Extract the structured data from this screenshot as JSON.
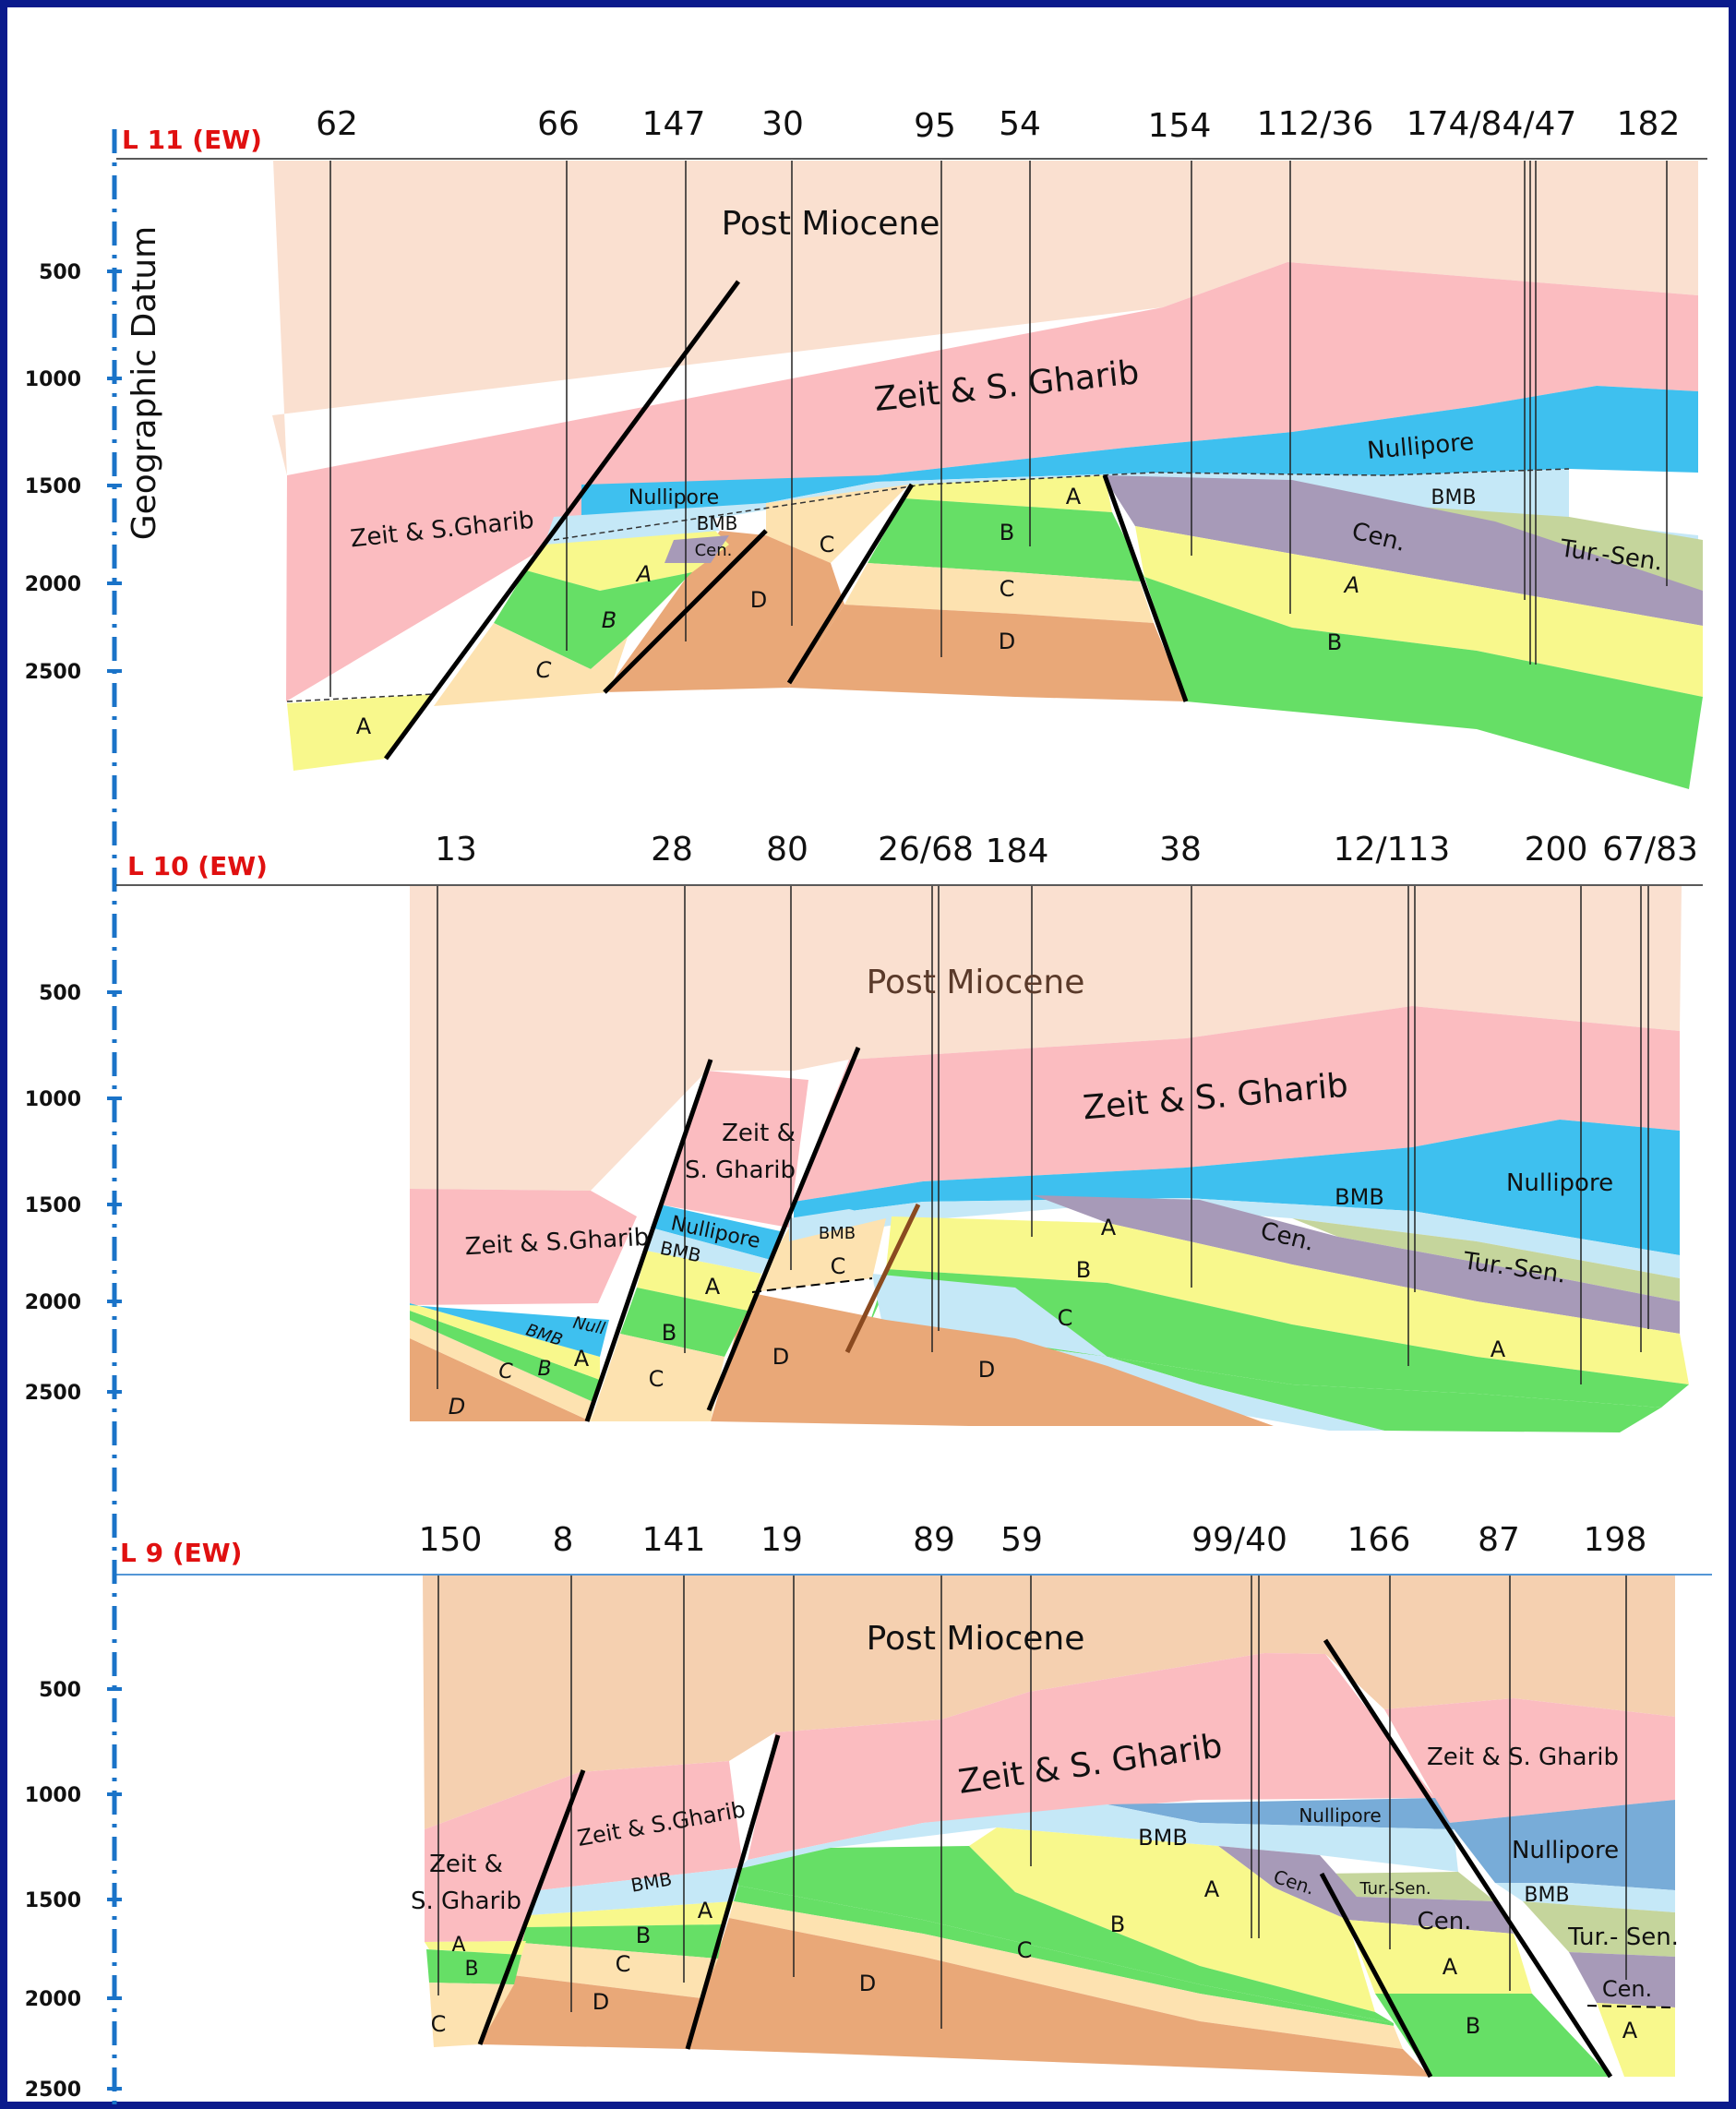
{
  "axis_title": "Geographic Datum",
  "colors": {
    "post_miocene_l11": "#fae0d0",
    "post_miocene_l9": "#f5d0b0",
    "zeit": "#fbbcc0",
    "nullipore": "#3ec0ef",
    "nullipore_l9": "#78acd8",
    "bmb": "#c5e8f7",
    "cen": "#a79ab8",
    "tur_sen": "#c5d59c",
    "unit_a": "#f8f88c",
    "unit_b": "#66df66",
    "unit_c": "#fde2b0",
    "unit_d": "#e9a878",
    "fault": "#000000",
    "title_red": "#e01010",
    "axis_blue": "#1a73c8",
    "frame": "#0a1a8c"
  },
  "sections": [
    {
      "title": "L 11 (EW)",
      "ticks": [
        "500",
        "1000",
        "1500",
        "2000",
        "2500"
      ],
      "wells": [
        "62",
        "66",
        "147",
        "30",
        "95",
        "54",
        "154",
        "112/36",
        "174/84/47",
        "182"
      ],
      "labels": {
        "post_miocene": "Post Miocene",
        "zeit_main": "Zeit & S. Gharib",
        "zeit_left": "Zeit & S.Gharib",
        "nullipore_a": "Nullipore",
        "nullipore_b": "Nullipore",
        "bmb_a": "BMB",
        "bmb_b": "BMB",
        "cen_a": "Cen.",
        "cen_b": "Cen.",
        "tur_sen": "Tur.-Sen.",
        "a1": "A",
        "a2": "A",
        "a3": "A",
        "a4": "A",
        "b1": "B",
        "b2": "B",
        "b3": "B",
        "c1": "C",
        "c2": "C",
        "c3": "C",
        "d1": "D",
        "d2": "D"
      }
    },
    {
      "title": "L 10 (EW)",
      "ticks": [
        "500",
        "1000",
        "1500",
        "2000",
        "2500"
      ],
      "wells": [
        "13",
        "28",
        "80",
        "26/68",
        "184",
        "38",
        "12/113",
        "200",
        "67/83"
      ],
      "labels": {
        "post_miocene": "Post Miocene",
        "zeit_main": "Zeit & S. Gharib",
        "zeit_left": "Zeit & S.Gharib",
        "zeit_block_1": "Zeit &",
        "zeit_block_2": "S. Gharib",
        "nullipore_a": "Nullipore",
        "nullipore_b": "Nullipore",
        "null": "Null",
        "bmb_a": "BMB",
        "bmb_b": "BMB",
        "bmb_c": "BMB",
        "bmb_d": "BMB",
        "cen": "Cen.",
        "tur_sen": "Tur.-Sen.",
        "a1": "A",
        "a2": "A",
        "a3": "A",
        "a4": "A",
        "b1": "B",
        "b2": "B",
        "b3": "B",
        "c1": "C",
        "c2": "C",
        "c3": "C",
        "c4": "C",
        "d1": "D",
        "d2": "D",
        "d3": "D"
      }
    },
    {
      "title": "L 9 (EW)",
      "ticks": [
        "500",
        "1000",
        "1500",
        "2000",
        "2500"
      ],
      "wells": [
        "150",
        "8",
        "141",
        "19",
        "89",
        "59",
        "99/40",
        "166",
        "87",
        "198"
      ],
      "labels": {
        "post_miocene": "Post Miocene",
        "zeit_main": "Zeit & S. Gharib",
        "zeit_mid": "Zeit & S.Gharib",
        "zeit_right": "Zeit & S. Gharib",
        "zeit_left_1": "Zeit &",
        "zeit_left_2": "S. Gharib",
        "nullipore_a": "Nullipore",
        "nullipore_b": "Nullipore",
        "bmb_a": "BMB",
        "bmb_b": "BMB",
        "bmb_c": "BMB",
        "cen_a": "Cen.",
        "cen_b": "Cen.",
        "cen_c": "Cen.",
        "tur_sen_a": "Tur.-Sen.",
        "tur_sen_b": "Tur.- Sen.",
        "a1": "A",
        "a2": "A",
        "a3": "A",
        "a4": "A",
        "a5": "A",
        "b1": "B",
        "b2": "B",
        "b3": "B",
        "b4": "B",
        "c1": "C",
        "c2": "C",
        "c3": "C",
        "d1": "D",
        "d2": "D"
      }
    }
  ]
}
